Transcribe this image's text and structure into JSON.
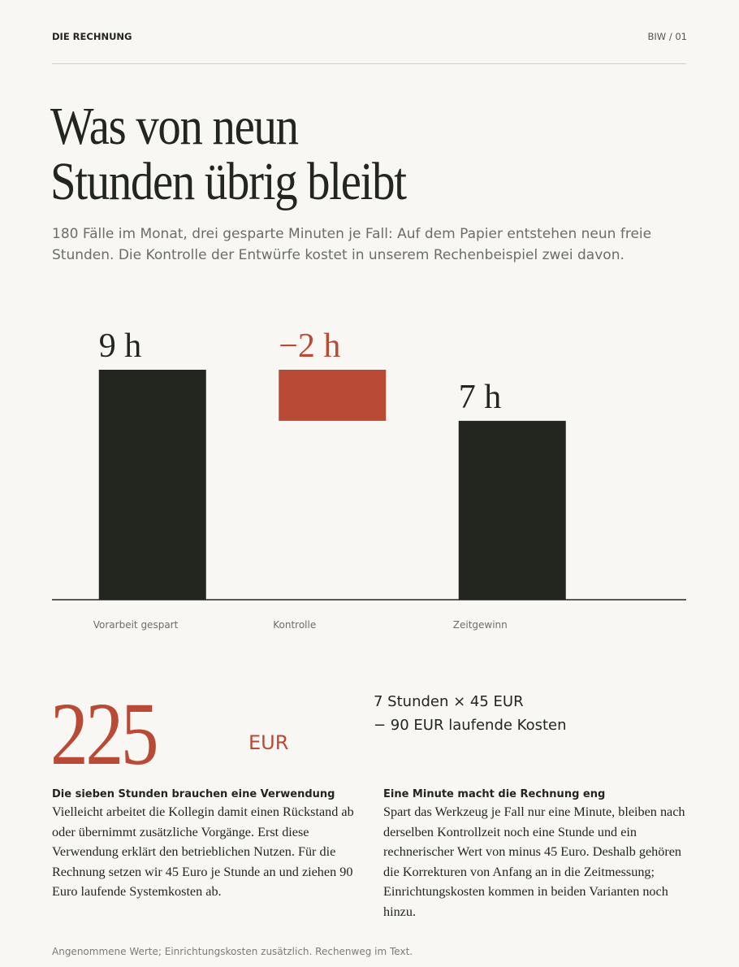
{
  "header": {
    "label": "DIE RECHNUNG",
    "page": "BIW / 01"
  },
  "title": [
    "Was von neun",
    "Stunden übrig bleibt"
  ],
  "lead": "180 Fälle im Monat, drei gesparte Minuten je Fall: Auf dem Papier entstehen neun freie Stunden. Die Kontrolle der Entwürfe kostet in unserem Rechenbeispiel zwei davon.",
  "chart_data": {
    "type": "waterfall",
    "categories": [
      "Vorarbeit gespart",
      "Kontrolle",
      "Zeitgewinn"
    ],
    "values": [
      9,
      -2,
      7
    ],
    "value_labels": [
      "9 h",
      "−2 h",
      "7 h"
    ],
    "colors": [
      "#22261f",
      "#b84a36",
      "#22261f"
    ]
  },
  "result": {
    "value": 225,
    "unit": "EUR",
    "formula": [
      "7 Stunden × 45 EUR",
      "− 90 EUR laufende Kosten"
    ]
  },
  "columns": [
    {
      "heading": "Die sieben Stunden brauchen eine Verwendung",
      "text": "Vielleicht arbeitet die Kollegin damit einen Rückstand ab oder übernimmt zusätzliche Vorgänge. Erst diese Verwendung erklärt den betrieblichen Nutzen. Für die Rechnung setzen wir 45 Euro je Stunde an und ziehen 90 Euro laufende Systemkosten ab."
    },
    {
      "heading": "Eine Minute macht die Rechnung eng",
      "text": "Spart das Werkzeug je Fall nur eine Minute, bleiben nach derselben Kontrollzeit noch eine Stunde und ein rechnerischer Wert von minus 45 Euro. Deshalb gehören die Korrekturen von Anfang an in die Zeitmessung; Einrichtungskosten kommen in beiden Varianten noch hinzu."
    }
  ],
  "footnote": "Angenommene Werte; Einrichtungskosten zusätzlich. Rechenweg im Text."
}
